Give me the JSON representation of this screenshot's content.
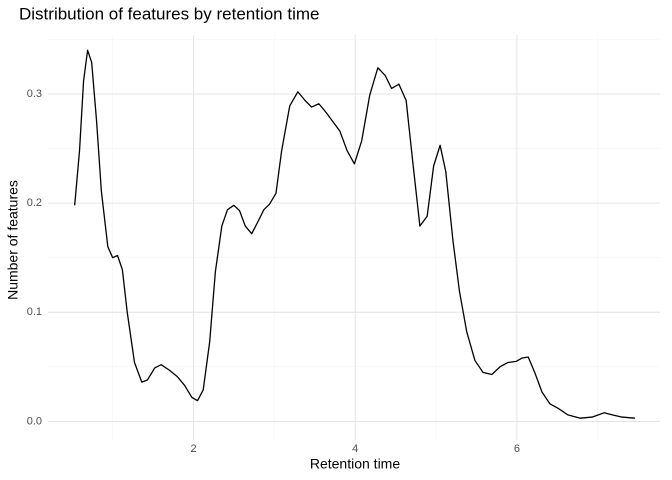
{
  "chart_data": {
    "type": "line",
    "title": "Distribution of features by retention time",
    "x_label": "Retention time",
    "y_label": "Number of features",
    "x": [
      0.53,
      0.59,
      0.64,
      0.69,
      0.74,
      0.8,
      0.86,
      0.94,
      1.0,
      1.06,
      1.12,
      1.18,
      1.27,
      1.36,
      1.43,
      1.52,
      1.6,
      1.7,
      1.8,
      1.89,
      1.98,
      2.05,
      2.12,
      2.2,
      2.27,
      2.35,
      2.42,
      2.5,
      2.57,
      2.64,
      2.72,
      2.79,
      2.87,
      2.94,
      3.02,
      3.09,
      3.19,
      3.29,
      3.38,
      3.46,
      3.55,
      3.64,
      3.72,
      3.81,
      3.9,
      3.99,
      4.08,
      4.18,
      4.28,
      4.37,
      4.45,
      4.54,
      4.63,
      4.71,
      4.8,
      4.89,
      4.97,
      5.05,
      5.12,
      5.21,
      5.29,
      5.38,
      5.48,
      5.58,
      5.69,
      5.79,
      5.89,
      5.99,
      6.06,
      6.14,
      6.22,
      6.31,
      6.41,
      6.51,
      6.63,
      6.78,
      6.93,
      7.08,
      7.18,
      7.3,
      7.46
    ],
    "values": [
      0.198,
      0.248,
      0.312,
      0.34,
      0.329,
      0.276,
      0.211,
      0.16,
      0.15,
      0.152,
      0.139,
      0.1,
      0.054,
      0.036,
      0.038,
      0.049,
      0.052,
      0.047,
      0.041,
      0.033,
      0.022,
      0.019,
      0.029,
      0.073,
      0.137,
      0.179,
      0.194,
      0.198,
      0.193,
      0.179,
      0.172,
      0.182,
      0.194,
      0.199,
      0.209,
      0.248,
      0.289,
      0.302,
      0.294,
      0.288,
      0.291,
      0.283,
      0.275,
      0.266,
      0.248,
      0.236,
      0.257,
      0.299,
      0.324,
      0.317,
      0.305,
      0.309,
      0.294,
      0.239,
      0.179,
      0.188,
      0.234,
      0.253,
      0.229,
      0.165,
      0.119,
      0.082,
      0.056,
      0.045,
      0.043,
      0.05,
      0.054,
      0.055,
      0.058,
      0.059,
      0.045,
      0.027,
      0.016,
      0.012,
      0.006,
      0.003,
      0.004,
      0.008,
      0.006,
      0.004,
      0.003
    ],
    "color": "#000000",
    "xlim": [
      0.2,
      7.77
    ],
    "ylim": [
      -0.017,
      0.354
    ],
    "xticks": [
      2,
      4,
      6
    ],
    "yticks": [
      {
        "value": 0,
        "label": "0.0"
      },
      {
        "value": 0.1,
        "label": "0.1"
      },
      {
        "value": 0.2,
        "label": "0.2"
      },
      {
        "value": 0.3,
        "label": "0.3"
      }
    ],
    "grid": true
  }
}
